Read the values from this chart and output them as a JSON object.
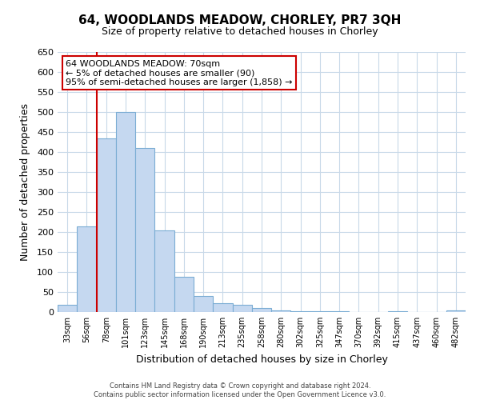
{
  "title": "64, WOODLANDS MEADOW, CHORLEY, PR7 3QH",
  "subtitle": "Size of property relative to detached houses in Chorley",
  "xlabel": "Distribution of detached houses by size in Chorley",
  "ylabel": "Number of detached properties",
  "bin_labels": [
    "33sqm",
    "56sqm",
    "78sqm",
    "101sqm",
    "123sqm",
    "145sqm",
    "168sqm",
    "190sqm",
    "213sqm",
    "235sqm",
    "258sqm",
    "280sqm",
    "302sqm",
    "325sqm",
    "347sqm",
    "370sqm",
    "392sqm",
    "415sqm",
    "437sqm",
    "460sqm",
    "482sqm"
  ],
  "bar_heights": [
    18,
    215,
    435,
    500,
    410,
    205,
    88,
    40,
    22,
    18,
    10,
    5,
    3,
    2,
    2,
    0,
    0,
    3,
    0,
    0,
    5
  ],
  "bar_color": "#c5d8f0",
  "bar_edge_color": "#7badd4",
  "property_line_color": "#cc0000",
  "property_line_index": 2,
  "ylim": [
    0,
    650
  ],
  "yticks": [
    0,
    50,
    100,
    150,
    200,
    250,
    300,
    350,
    400,
    450,
    500,
    550,
    600,
    650
  ],
  "annotation_title": "64 WOODLANDS MEADOW: 70sqm",
  "annotation_line1": "← 5% of detached houses are smaller (90)",
  "annotation_line2": "95% of semi-detached houses are larger (1,858) →",
  "annotation_box_color": "#ffffff",
  "annotation_box_edge": "#cc0000",
  "footer1": "Contains HM Land Registry data © Crown copyright and database right 2024.",
  "footer2": "Contains public sector information licensed under the Open Government Licence v3.0.",
  "background_color": "#ffffff",
  "grid_color": "#c8d8e8",
  "title_fontsize": 11,
  "subtitle_fontsize": 9
}
